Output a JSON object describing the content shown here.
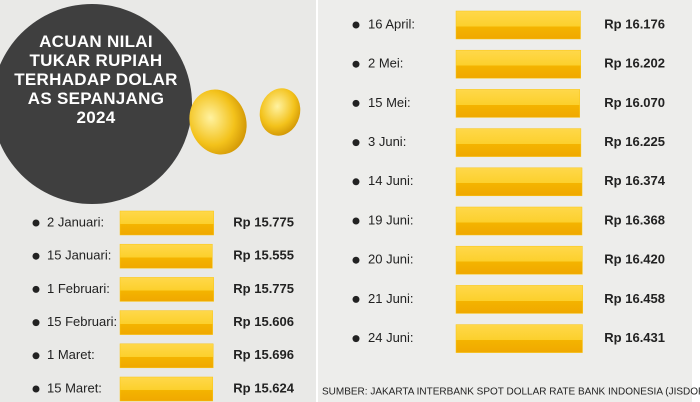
{
  "chart_data": [
    {
      "type": "bar",
      "title": "ACUAN NILAI TUKAR RUPIAH TERHADAP DOLAR AS SEPANJANG 2024",
      "categories": [
        "2 Januari:",
        "15 Januari:",
        "1 Februari:",
        "15 Februari:",
        "1 Maret:",
        "15 Maret:"
      ],
      "values": [
        15775,
        15555,
        15775,
        15606,
        15696,
        15624
      ],
      "value_labels": [
        "Rp 15.775",
        "Rp 15.555",
        "Rp 15.775",
        "Rp 15.606",
        "Rp 15.696",
        "Rp 15.624"
      ],
      "xlim": [
        0,
        16000
      ],
      "color": "#f9c513"
    },
    {
      "type": "bar",
      "source": "SUMBER: JAKARTA INTERBANK SPOT DOLLAR RATE BANK INDONESIA (JISDOR BI)",
      "categories": [
        "16 April:",
        "2 Mei:",
        "15 Mei:",
        "3 Juni:",
        "14 Juni:",
        "19 Juni:",
        "20 Juni:",
        "21 Juni:",
        "24 Juni:"
      ],
      "values": [
        16176,
        16202,
        16070,
        16225,
        16374,
        16368,
        16420,
        16458,
        16431
      ],
      "value_labels": [
        "Rp 16.176",
        "Rp 16.202",
        "Rp 16.070",
        "Rp 16.225",
        "Rp 16.374",
        "Rp 16.368",
        "Rp 16.420",
        "Rp 16.458",
        "Rp 16.431"
      ],
      "xlim": [
        0,
        16500
      ],
      "color": "#f9c513"
    }
  ]
}
